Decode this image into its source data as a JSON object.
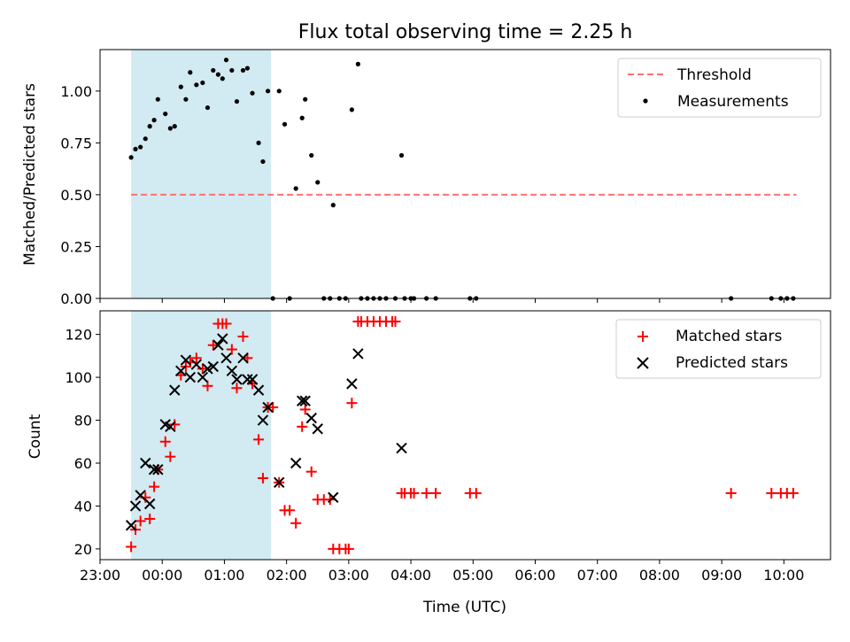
{
  "chart_data": [
    {
      "type": "scatter",
      "title": "Flux total observing time = 2.25 h",
      "xlabel": "",
      "ylabel": "Matched/Predicted stars",
      "xlim": [
        -1.0,
        10.75
      ],
      "ylim": [
        0.0,
        1.2
      ],
      "yticks": [
        0.0,
        0.25,
        0.5,
        0.75,
        1.0
      ],
      "ytick_labels": [
        "0.00",
        "0.25",
        "0.50",
        "0.75",
        "1.00"
      ],
      "shaded_region": {
        "start": -0.5,
        "end": 1.75,
        "color": "#add8e6"
      },
      "threshold": {
        "name": "Threshold",
        "y": 0.5,
        "x_start": -0.5,
        "x_end": 10.2,
        "color": "#ff7070",
        "style": "dashed"
      },
      "legend": [
        "Threshold",
        "Measurements"
      ],
      "legend_location": "top-right",
      "series": [
        {
          "name": "Measurements",
          "color": "#000000",
          "marker": "dot",
          "points": [
            [
              -0.5,
              0.68
            ],
            [
              -0.43,
              0.72
            ],
            [
              -0.35,
              0.73
            ],
            [
              -0.27,
              0.77
            ],
            [
              -0.2,
              0.83
            ],
            [
              -0.13,
              0.86
            ],
            [
              -0.07,
              0.96
            ],
            [
              0.05,
              0.89
            ],
            [
              0.13,
              0.82
            ],
            [
              0.2,
              0.83
            ],
            [
              0.3,
              1.02
            ],
            [
              0.38,
              0.96
            ],
            [
              0.45,
              1.09
            ],
            [
              0.55,
              1.03
            ],
            [
              0.65,
              1.04
            ],
            [
              0.73,
              0.92
            ],
            [
              0.82,
              1.1
            ],
            [
              0.9,
              1.08
            ],
            [
              0.97,
              1.06
            ],
            [
              1.03,
              1.15
            ],
            [
              1.12,
              1.1
            ],
            [
              1.2,
              0.95
            ],
            [
              1.3,
              1.1
            ],
            [
              1.37,
              1.11
            ],
            [
              1.45,
              0.99
            ],
            [
              1.55,
              0.75
            ],
            [
              1.62,
              0.66
            ],
            [
              1.7,
              1.0
            ],
            [
              1.78,
              0.0
            ],
            [
              1.88,
              1.0
            ],
            [
              1.97,
              0.84
            ],
            [
              2.05,
              0.0
            ],
            [
              2.15,
              0.53
            ],
            [
              2.25,
              0.87
            ],
            [
              2.3,
              0.96
            ],
            [
              2.4,
              0.69
            ],
            [
              2.5,
              0.56
            ],
            [
              2.6,
              0.0
            ],
            [
              2.7,
              0.0
            ],
            [
              2.75,
              0.45
            ],
            [
              2.85,
              0.0
            ],
            [
              2.95,
              0.0
            ],
            [
              3.05,
              0.91
            ],
            [
              3.15,
              1.13
            ],
            [
              3.2,
              0.0
            ],
            [
              3.3,
              0.0
            ],
            [
              3.4,
              0.0
            ],
            [
              3.5,
              0.0
            ],
            [
              3.6,
              0.0
            ],
            [
              3.75,
              0.0
            ],
            [
              3.85,
              0.69
            ],
            [
              3.9,
              0.0
            ],
            [
              4.0,
              0.0
            ],
            [
              4.05,
              0.0
            ],
            [
              4.25,
              0.0
            ],
            [
              4.4,
              0.0
            ],
            [
              4.95,
              0.0
            ],
            [
              5.05,
              0.0
            ],
            [
              9.15,
              0.0
            ],
            [
              9.8,
              0.0
            ],
            [
              9.95,
              0.0
            ],
            [
              10.05,
              0.0
            ],
            [
              10.15,
              0.0
            ]
          ]
        }
      ]
    },
    {
      "type": "scatter",
      "title": "",
      "xlabel": "Time (UTC)",
      "ylabel": "Count",
      "xlim": [
        -1.0,
        10.75
      ],
      "ylim": [
        15,
        131
      ],
      "yticks": [
        20,
        40,
        60,
        80,
        100,
        120
      ],
      "ytick_labels": [
        "20",
        "40",
        "60",
        "80",
        "100",
        "120"
      ],
      "xticks": [
        -1,
        0,
        1,
        2,
        3,
        4,
        5,
        6,
        7,
        8,
        9,
        10
      ],
      "xtick_labels": [
        "23:00",
        "00:00",
        "01:00",
        "02:00",
        "03:00",
        "04:00",
        "05:00",
        "06:00",
        "07:00",
        "08:00",
        "09:00",
        "10:00"
      ],
      "shaded_region": {
        "start": -0.5,
        "end": 1.75,
        "color": "#add8e6"
      },
      "legend": [
        "Matched stars",
        "Predicted stars"
      ],
      "legend_location": "top-right",
      "series": [
        {
          "name": "Matched stars",
          "color": "#ff0000",
          "marker": "plus",
          "points": [
            [
              -0.5,
              21
            ],
            [
              -0.43,
              29
            ],
            [
              -0.35,
              33
            ],
            [
              -0.27,
              44
            ],
            [
              -0.2,
              34
            ],
            [
              -0.13,
              49
            ],
            [
              -0.07,
              57
            ],
            [
              0.05,
              70
            ],
            [
              0.13,
              63
            ],
            [
              0.2,
              78
            ],
            [
              0.3,
              101
            ],
            [
              0.38,
              105
            ],
            [
              0.45,
              107
            ],
            [
              0.55,
              109
            ],
            [
              0.65,
              104
            ],
            [
              0.73,
              96
            ],
            [
              0.82,
              115
            ],
            [
              0.9,
              125
            ],
            [
              0.97,
              125
            ],
            [
              1.03,
              125
            ],
            [
              1.12,
              113
            ],
            [
              1.2,
              95
            ],
            [
              1.3,
              119
            ],
            [
              1.37,
              109
            ],
            [
              1.45,
              97
            ],
            [
              1.55,
              71
            ],
            [
              1.62,
              53
            ],
            [
              1.7,
              86
            ],
            [
              1.78,
              86
            ],
            [
              1.88,
              51
            ],
            [
              1.97,
              38
            ],
            [
              2.05,
              38
            ],
            [
              2.15,
              32
            ],
            [
              2.25,
              77
            ],
            [
              2.3,
              85
            ],
            [
              2.4,
              56
            ],
            [
              2.5,
              43
            ],
            [
              2.6,
              43
            ],
            [
              2.7,
              43
            ],
            [
              2.75,
              20
            ],
            [
              2.85,
              20
            ],
            [
              2.95,
              20
            ],
            [
              3.0,
              20
            ],
            [
              3.05,
              88
            ],
            [
              3.15,
              126
            ],
            [
              3.2,
              126
            ],
            [
              3.3,
              126
            ],
            [
              3.4,
              126
            ],
            [
              3.5,
              126
            ],
            [
              3.6,
              126
            ],
            [
              3.7,
              126
            ],
            [
              3.75,
              126
            ],
            [
              3.85,
              46
            ],
            [
              3.9,
              46
            ],
            [
              4.0,
              46
            ],
            [
              4.05,
              46
            ],
            [
              4.25,
              46
            ],
            [
              4.4,
              46
            ],
            [
              4.95,
              46
            ],
            [
              5.05,
              46
            ],
            [
              9.15,
              46
            ],
            [
              9.8,
              46
            ],
            [
              9.95,
              46
            ],
            [
              10.05,
              46
            ],
            [
              10.15,
              46
            ]
          ]
        },
        {
          "name": "Predicted stars",
          "color": "#000000",
          "marker": "x",
          "points": [
            [
              -0.5,
              31
            ],
            [
              -0.43,
              40
            ],
            [
              -0.35,
              45
            ],
            [
              -0.27,
              60
            ],
            [
              -0.2,
              41
            ],
            [
              -0.13,
              57
            ],
            [
              -0.07,
              57
            ],
            [
              0.05,
              78
            ],
            [
              0.13,
              77
            ],
            [
              0.2,
              94
            ],
            [
              0.3,
              103
            ],
            [
              0.38,
              108
            ],
            [
              0.45,
              100
            ],
            [
              0.55,
              106
            ],
            [
              0.65,
              100
            ],
            [
              0.73,
              104
            ],
            [
              0.82,
              105
            ],
            [
              0.9,
              115
            ],
            [
              0.97,
              118
            ],
            [
              1.03,
              109
            ],
            [
              1.12,
              103
            ],
            [
              1.2,
              99
            ],
            [
              1.3,
              109
            ],
            [
              1.37,
              99
            ],
            [
              1.45,
              99
            ],
            [
              1.55,
              94
            ],
            [
              1.62,
              80
            ],
            [
              1.7,
              86
            ],
            [
              1.88,
              51
            ],
            [
              2.15,
              60
            ],
            [
              2.25,
              89
            ],
            [
              2.3,
              89
            ],
            [
              2.4,
              81
            ],
            [
              2.5,
              76
            ],
            [
              2.75,
              44
            ],
            [
              3.05,
              97
            ],
            [
              3.15,
              111
            ],
            [
              3.85,
              67
            ]
          ]
        }
      ]
    }
  ]
}
